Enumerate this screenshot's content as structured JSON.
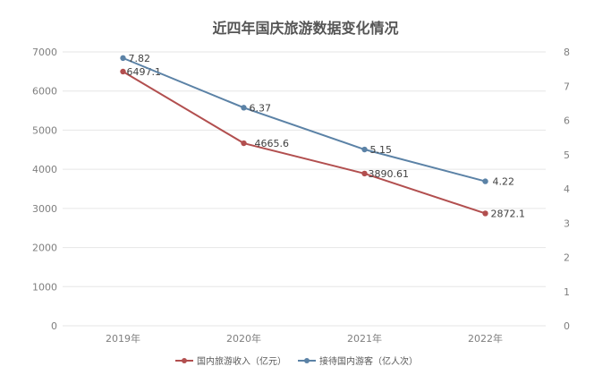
{
  "chart_data": {
    "type": "line",
    "title": "近四年国庆旅游数据变化情况",
    "categories": [
      "2019年",
      "2020年",
      "2021年",
      "2022年"
    ],
    "y_left": {
      "ticks": [
        "0",
        "1000",
        "2000",
        "3000",
        "4000",
        "5000",
        "6000",
        "7000"
      ],
      "range": [
        0,
        7000
      ]
    },
    "y_right": {
      "ticks": [
        "0",
        "1",
        "2",
        "3",
        "4",
        "5",
        "6",
        "7",
        "8"
      ],
      "range": [
        0,
        8
      ]
    },
    "grid": true,
    "legend_position": "bottom",
    "series": [
      {
        "name": "国内旅游收入（亿元）",
        "axis": "left",
        "color": "#B24F4F",
        "values": [
          6497.1,
          4665.6,
          3890.61,
          2872.1
        ],
        "labels": [
          "6497.1",
          "4665.6",
          "3890.61",
          "2872.1"
        ]
      },
      {
        "name": "接待国内游客（亿人次）",
        "axis": "right",
        "color": "#5B82A6",
        "values": [
          7.82,
          6.37,
          5.15,
          4.22
        ],
        "labels": [
          "7.82",
          "6.37",
          "5.15",
          "4.22"
        ]
      }
    ]
  }
}
